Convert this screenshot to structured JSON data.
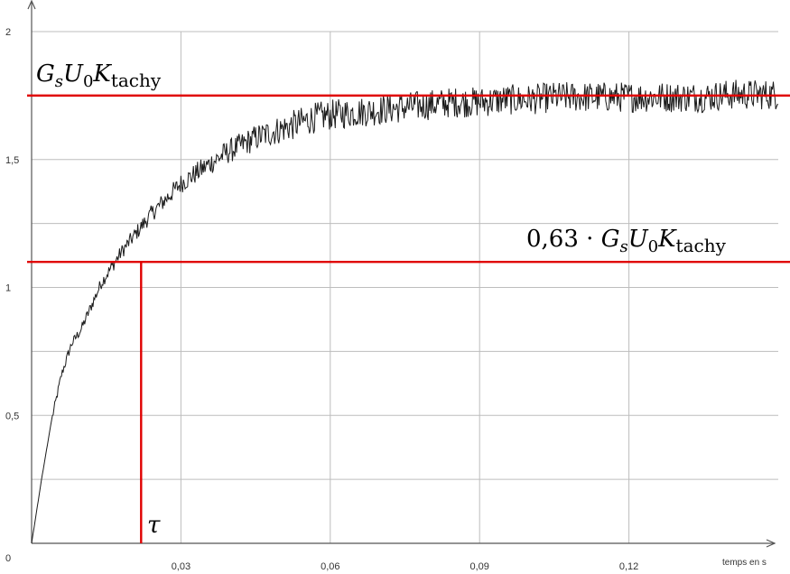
{
  "chart_data": {
    "type": "line",
    "xlabel": "temps en s",
    "ylabel": "",
    "xlim": [
      0,
      0.15
    ],
    "ylim": [
      0,
      2
    ],
    "x_ticks": [
      0,
      0.03,
      0.06,
      0.09,
      0.12
    ],
    "x_tick_labels": [
      "0",
      "0,03",
      "0,06",
      "0,09",
      "0,12"
    ],
    "y_ticks": [
      0,
      0.5,
      1,
      1.5,
      2
    ],
    "y_tick_labels": [
      "0",
      "0,5",
      "1",
      "1,5",
      "2"
    ],
    "grid": true,
    "legend": "none",
    "series": [
      {
        "x": [
          0,
          0.002,
          0.004,
          0.006,
          0.008,
          0.01,
          0.012,
          0.014,
          0.016,
          0.018,
          0.02,
          0.022,
          0.024,
          0.026,
          0.028,
          0.03,
          0.033,
          0.036,
          0.039,
          0.042,
          0.045,
          0.048,
          0.051,
          0.054,
          0.057,
          0.06,
          0.065,
          0.07,
          0.075,
          0.08,
          0.085,
          0.09,
          0.095,
          0.1,
          0.105,
          0.11,
          0.115,
          0.12,
          0.125,
          0.13,
          0.135,
          0.14,
          0.145,
          0.15
        ],
        "values": [
          0,
          0.25,
          0.48,
          0.66,
          0.78,
          0.84,
          0.93,
          1.02,
          1.08,
          1.14,
          1.19,
          1.24,
          1.29,
          1.33,
          1.37,
          1.41,
          1.45,
          1.49,
          1.53,
          1.56,
          1.59,
          1.61,
          1.63,
          1.65,
          1.67,
          1.68,
          1.69,
          1.7,
          1.71,
          1.72,
          1.73,
          1.73,
          1.74,
          1.74,
          1.75,
          1.75,
          1.75,
          1.75,
          1.75,
          1.75,
          1.75,
          1.76,
          1.76,
          1.76
        ],
        "color": "#1a1a1a"
      }
    ],
    "reference_lines": [
      {
        "kind": "horizontal",
        "value": 1.75,
        "color": "#e00000"
      },
      {
        "kind": "horizontal",
        "value": 1.1,
        "color": "#e00000"
      },
      {
        "kind": "vertical",
        "value": 0.022,
        "color": "#e00000"
      }
    ],
    "annotations": [
      {
        "text": "G_s U_0 K_tachy",
        "parts": {
          "G": "G",
          "s": "s",
          "U": "U",
          "zero": "0",
          "K": "K",
          "tachy": "tachy"
        }
      },
      {
        "text": "0,63 · G_s U_0 K_tachy",
        "prefix": "0,63 · ",
        "parts": {
          "G": "G",
          "s": "s",
          "U": "U",
          "zero": "0",
          "K": "K",
          "tachy": "tachy"
        }
      },
      {
        "text": "τ"
      }
    ]
  }
}
